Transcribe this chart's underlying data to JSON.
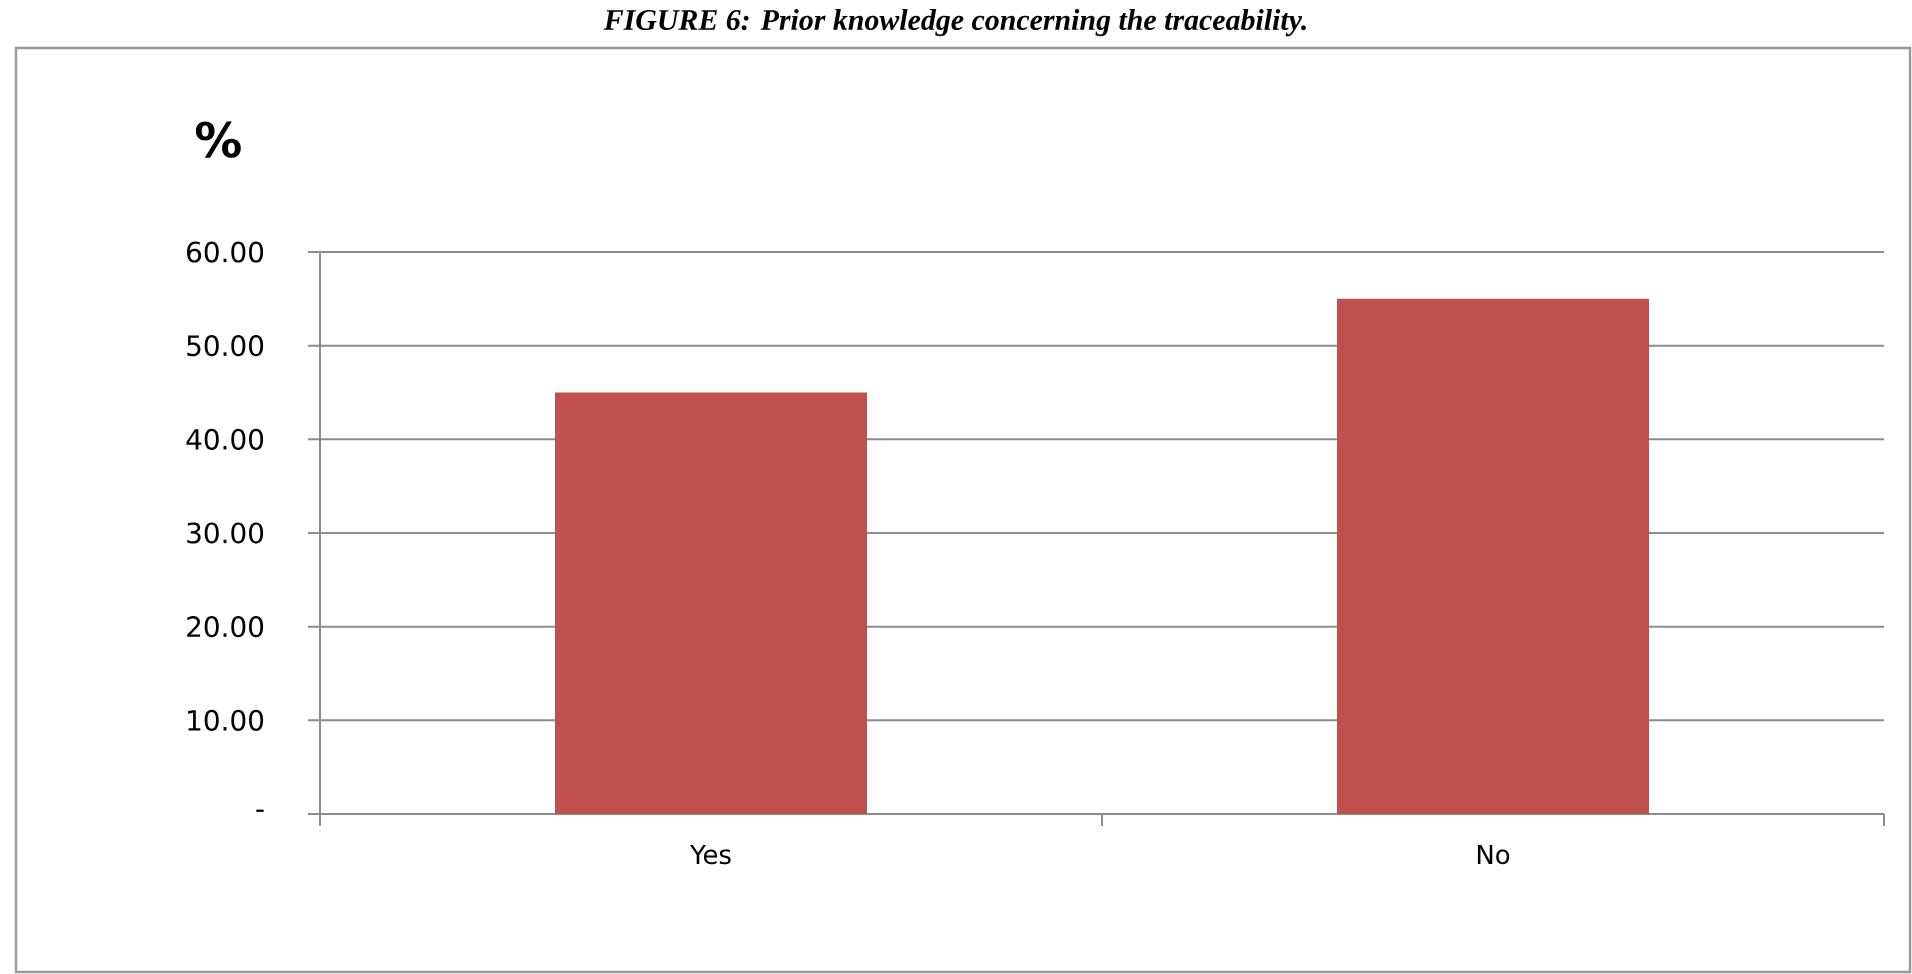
{
  "chart_data": {
    "type": "bar",
    "title": "FIGURE 6: Prior knowledge concerning the traceability.",
    "ylabel": "%",
    "categories": [
      "Yes",
      "No"
    ],
    "values": [
      45,
      55
    ],
    "color": "#c0504d",
    "ylim": [
      0,
      60
    ],
    "yticks": [
      {
        "value": 0,
        "label": "-"
      },
      {
        "value": 10,
        "label": "10.00"
      },
      {
        "value": 20,
        "label": "20.00"
      },
      {
        "value": 30,
        "label": "30.00"
      },
      {
        "value": 40,
        "label": "40.00"
      },
      {
        "value": 50,
        "label": "50.00"
      },
      {
        "value": 60,
        "label": "60.00"
      }
    ],
    "grid": "y"
  }
}
